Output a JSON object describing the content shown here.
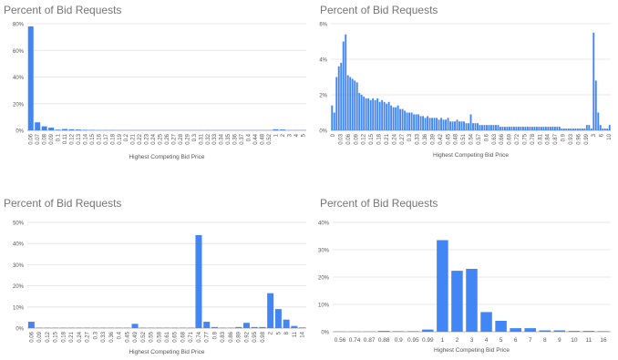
{
  "charts": [
    {
      "title": "Percent of Bid Requests",
      "xlabel": "Highest Competing Bid Price"
    },
    {
      "title": "Percent of Bid Requests",
      "xlabel": "Highest Competing Bid Price"
    },
    {
      "title": "Percent of Bid Requests",
      "xlabel": "Highest Competing Bid Price"
    },
    {
      "title": "Percent of Bid Requests",
      "xlabel": "Highest Competing Bid Price"
    }
  ],
  "colors": {
    "bar": "#4285f4",
    "grid": "#e0e0e0",
    "axis": "#9e9e9e"
  },
  "chart_data": [
    {
      "type": "bar",
      "title": "Percent of Bid Requests",
      "xlabel": "Highest Competing Bid Price",
      "ylabel": "",
      "ylim": [
        0,
        80
      ],
      "yticks": [
        "0%",
        "20%",
        "40%",
        "60%",
        "80%"
      ],
      "grid": true,
      "categories": [
        "0.06",
        "0.07",
        "0.08",
        "0.09",
        "0.1",
        "0.11",
        "0.12",
        "0.13",
        "0.14",
        "0.15",
        "0.16",
        "0.17",
        "0.18",
        "0.19",
        "0.2",
        "0.21",
        "0.22",
        "0.23",
        "0.24",
        "0.25",
        "0.26",
        "0.27",
        "0.28",
        "0.29",
        "0.3",
        "0.31",
        "0.32",
        "0.33",
        "0.34",
        "0.35",
        "0.36",
        "0.37",
        "0.4",
        "0.44",
        "0.48",
        "0.52",
        "1",
        "2",
        "3",
        "4",
        "5"
      ],
      "values": [
        78,
        6,
        3,
        2,
        0.5,
        1,
        0.8,
        0.6,
        0.4,
        0.3,
        0.2,
        0.2,
        0.2,
        0.1,
        0.1,
        0.1,
        0.1,
        0.1,
        0.1,
        0.1,
        0.1,
        0.1,
        0.1,
        0.1,
        0.1,
        0.1,
        0.1,
        0.1,
        0.1,
        0.1,
        0.1,
        0.1,
        0.1,
        0.1,
        0.1,
        0.1,
        0.8,
        0.6,
        0.1,
        0.1,
        0.1
      ]
    },
    {
      "type": "bar",
      "title": "Percent of Bid Requests",
      "xlabel": "Highest Competing Bid Price",
      "ylabel": "",
      "ylim": [
        0,
        6
      ],
      "yticks": [
        "0%",
        "2%",
        "4%",
        "6%"
      ],
      "grid": true,
      "tick_labels": [
        "0",
        "0.03",
        "0.06",
        "0.09",
        "0.12",
        "0.15",
        "0.18",
        "0.21",
        "0.24",
        "0.27",
        "0.3",
        "0.33",
        "0.36",
        "0.39",
        "0.42",
        "0.45",
        "0.48",
        "0.51",
        "0.54",
        "0.57",
        "0.6",
        "0.63",
        "0.66",
        "0.69",
        "0.72",
        "0.75",
        "0.78",
        "0.81",
        "0.84",
        "0.87",
        "0.9",
        "0.93",
        "0.96",
        "0.99",
        "3",
        "6",
        "10"
      ],
      "values": [
        1.4,
        1.0,
        3.0,
        3.6,
        3.8,
        5.0,
        5.4,
        3.1,
        3.0,
        2.9,
        2.8,
        2.7,
        2.1,
        2.0,
        1.9,
        1.8,
        1.8,
        1.7,
        1.8,
        1.7,
        1.8,
        1.6,
        1.7,
        1.6,
        1.5,
        1.6,
        1.4,
        1.3,
        1.3,
        1.4,
        1.2,
        1.2,
        1.1,
        1.0,
        1.0,
        1.0,
        0.9,
        0.9,
        0.9,
        0.8,
        0.8,
        0.7,
        0.8,
        0.7,
        0.7,
        0.7,
        0.7,
        0.6,
        0.7,
        0.6,
        0.6,
        0.7,
        0.5,
        0.5,
        0.5,
        0.6,
        0.5,
        0.5,
        0.5,
        0.4,
        0.4,
        0.9,
        0.4,
        0.4,
        0.4,
        0.3,
        0.3,
        0.3,
        0.3,
        0.3,
        0.3,
        0.3,
        0.3,
        0.3,
        0.2,
        0.2,
        0.2,
        0.2,
        0.2,
        0.2,
        0.2,
        0.2,
        0.2,
        0.2,
        0.2,
        0.2,
        0.2,
        0.2,
        0.2,
        0.2,
        0.2,
        0.2,
        0.2,
        0.2,
        0.2,
        0.2,
        0.2,
        0.2,
        0.2,
        0.2,
        0.2,
        0.1,
        0.1,
        0.1,
        0.1,
        0.1,
        0.1,
        0.1,
        0.1,
        0.1,
        0.1,
        0.1,
        0.3,
        0.3,
        0.1,
        5.5,
        2.8,
        1.0,
        0.3,
        0.1,
        0.1,
        0.1,
        0.3
      ]
    },
    {
      "type": "bar",
      "title": "Percent of Bid Requests",
      "xlabel": "Highest Competing Bid Price",
      "ylabel": "",
      "ylim": [
        0,
        50
      ],
      "yticks": [
        "0%",
        "10%",
        "20%",
        "30%",
        "40%",
        "50%"
      ],
      "grid": true,
      "categories": [
        "0.06",
        "0.09",
        "0.12",
        "0.15",
        "0.18",
        "0.21",
        "0.24",
        "0.27",
        "0.3",
        "0.33",
        "0.36",
        "0.4",
        "0.45",
        "0.49",
        "0.52",
        "0.55",
        "0.58",
        "0.61",
        "0.65",
        "0.68",
        "0.71",
        "0.74",
        "0.77",
        "0.8",
        "0.83",
        "0.86",
        "0.89",
        "0.92",
        "0.95",
        "0.98",
        "2",
        "5",
        "8",
        "11",
        "14"
      ],
      "values": [
        3,
        0.2,
        0.2,
        0.2,
        0.2,
        0.2,
        0.2,
        0.2,
        0.2,
        0.2,
        0.2,
        0.2,
        0.2,
        2,
        0.2,
        0.2,
        0.2,
        0.2,
        0.2,
        0.2,
        0.2,
        44,
        3,
        0.5,
        0.2,
        0.2,
        0.5,
        2.5,
        0.5,
        0.5,
        16.5,
        9,
        4,
        1,
        0.3
      ]
    },
    {
      "type": "bar",
      "title": "Percent of Bid Requests",
      "xlabel": "Highest Competing Bid Price",
      "ylabel": "",
      "ylim": [
        0,
        40
      ],
      "yticks": [
        "0%",
        "10%",
        "20%",
        "30%",
        "40%"
      ],
      "grid": true,
      "categories": [
        "0.56",
        "0.74",
        "0.87",
        "0.88",
        "0.9",
        "0.95",
        "0.99",
        "1",
        "2",
        "3",
        "4",
        "5",
        "6",
        "7",
        "8",
        "9",
        "10",
        "11",
        "16"
      ],
      "values": [
        0.1,
        0.1,
        0.1,
        0.3,
        0.2,
        0.2,
        0.8,
        33.5,
        22.3,
        23.0,
        7.2,
        4.0,
        1.3,
        1.3,
        0.5,
        0.5,
        0.3,
        0.3,
        0.2
      ]
    }
  ]
}
